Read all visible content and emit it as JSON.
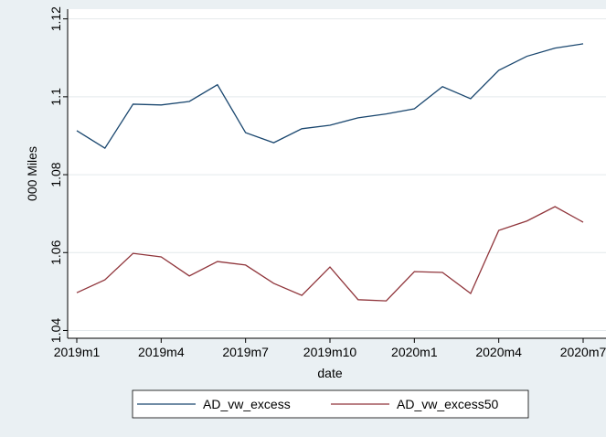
{
  "chart_data": {
    "type": "line",
    "categories": [
      "2019m1",
      null,
      null,
      "2019m4",
      null,
      null,
      "2019m7",
      null,
      null,
      "2019m10",
      null,
      null,
      "2020m1",
      null,
      null,
      "2020m4",
      null,
      null,
      "2020m7"
    ],
    "series": [
      {
        "name": "AD_vw_excess",
        "color": "#1a476f",
        "values": [
          1.0913,
          1.0868,
          1.0981,
          1.0979,
          1.0988,
          1.1031,
          1.0908,
          1.0882,
          1.0918,
          1.0927,
          1.0946,
          1.0956,
          1.0969,
          1.1026,
          1.0995,
          1.1068,
          1.1104,
          1.1125,
          1.1136
        ]
      },
      {
        "name": "AD_vw_excess50",
        "color": "#90353b",
        "values": [
          1.0497,
          1.053,
          1.0598,
          1.0589,
          1.054,
          1.0577,
          1.0568,
          1.0521,
          1.049,
          1.0563,
          1.0479,
          1.0476,
          1.0551,
          1.0549,
          1.0495,
          1.0657,
          1.0681,
          1.0718,
          1.0678
        ]
      }
    ],
    "ylabel": "000 Miles",
    "xlabel": "date",
    "ylim": [
      1.038,
      1.1225
    ],
    "yticks": [
      1.04,
      1.06,
      1.08,
      1.1,
      1.12
    ],
    "grid": true,
    "legend": "bottom"
  }
}
